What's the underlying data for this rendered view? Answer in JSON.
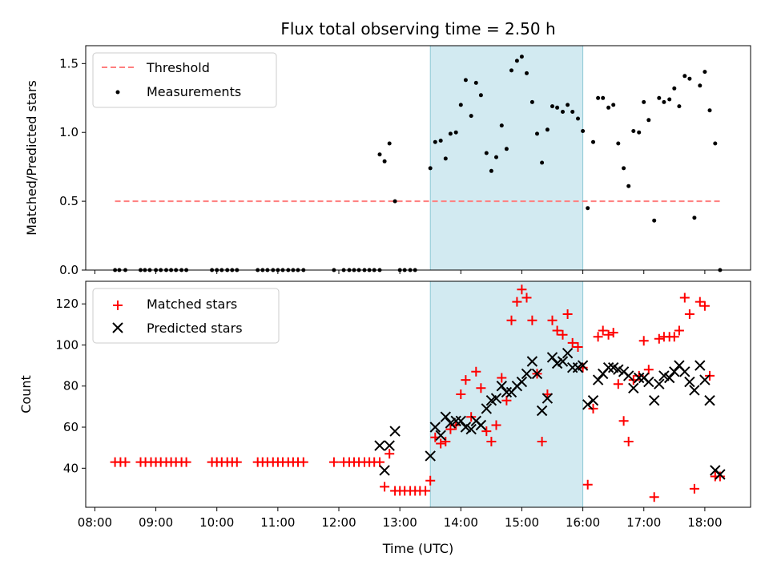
{
  "chart_data": {
    "title": "Flux total observing time = 2.50 h",
    "xlabel": "Time (UTC)",
    "x_ticks": [
      "08:00",
      "09:00",
      "10:00",
      "11:00",
      "12:00",
      "13:00",
      "14:00",
      "15:00",
      "16:00",
      "17:00",
      "18:00"
    ],
    "x_range_hours": [
      7.85,
      18.75
    ],
    "highlight_span_hours": [
      13.5,
      16.0
    ],
    "highlight_color": "#add8e6",
    "top": {
      "type": "scatter",
      "ylabel": "Matched/Predicted stars",
      "ylim": [
        0,
        1.63
      ],
      "y_ticks": [
        0.0,
        0.5,
        1.0,
        1.5
      ],
      "threshold": {
        "value": 0.5,
        "x_start": 8.33,
        "x_end": 18.25,
        "label": "Threshold",
        "color": "#ff7f7f"
      },
      "series_label": "Measurements",
      "points": [
        [
          8.33,
          0
        ],
        [
          8.4,
          0
        ],
        [
          8.5,
          0
        ],
        [
          8.75,
          0
        ],
        [
          8.82,
          0
        ],
        [
          8.9,
          0
        ],
        [
          9.0,
          0
        ],
        [
          9.08,
          0
        ],
        [
          9.17,
          0
        ],
        [
          9.25,
          0
        ],
        [
          9.33,
          0
        ],
        [
          9.42,
          0
        ],
        [
          9.5,
          0
        ],
        [
          9.92,
          0
        ],
        [
          10.0,
          0
        ],
        [
          10.08,
          0
        ],
        [
          10.17,
          0
        ],
        [
          10.25,
          0
        ],
        [
          10.33,
          0
        ],
        [
          10.67,
          0
        ],
        [
          10.75,
          0
        ],
        [
          10.83,
          0
        ],
        [
          10.92,
          0
        ],
        [
          11.0,
          0
        ],
        [
          11.08,
          0
        ],
        [
          11.17,
          0
        ],
        [
          11.25,
          0
        ],
        [
          11.33,
          0
        ],
        [
          11.42,
          0
        ],
        [
          11.92,
          0
        ],
        [
          12.08,
          0
        ],
        [
          12.17,
          0
        ],
        [
          12.25,
          0
        ],
        [
          12.33,
          0
        ],
        [
          12.42,
          0
        ],
        [
          12.5,
          0
        ],
        [
          12.58,
          0
        ],
        [
          12.67,
          0
        ],
        [
          13.0,
          0
        ],
        [
          13.08,
          0
        ],
        [
          13.17,
          0
        ],
        [
          13.25,
          0
        ],
        [
          12.67,
          0.84
        ],
        [
          12.75,
          0.79
        ],
        [
          12.83,
          0.92
        ],
        [
          12.92,
          0.5
        ],
        [
          13.5,
          0.74
        ],
        [
          13.58,
          0.93
        ],
        [
          13.67,
          0.94
        ],
        [
          13.75,
          0.81
        ],
        [
          13.83,
          0.99
        ],
        [
          13.92,
          1.0
        ],
        [
          14.0,
          1.2
        ],
        [
          14.08,
          1.38
        ],
        [
          14.17,
          1.12
        ],
        [
          14.25,
          1.36
        ],
        [
          14.33,
          1.27
        ],
        [
          14.42,
          0.85
        ],
        [
          14.5,
          0.72
        ],
        [
          14.58,
          0.82
        ],
        [
          14.67,
          1.05
        ],
        [
          14.75,
          0.88
        ],
        [
          14.83,
          1.45
        ],
        [
          14.92,
          1.52
        ],
        [
          15.0,
          1.55
        ],
        [
          15.08,
          1.43
        ],
        [
          15.17,
          1.22
        ],
        [
          15.25,
          0.99
        ],
        [
          15.33,
          0.78
        ],
        [
          15.42,
          1.02
        ],
        [
          15.5,
          1.19
        ],
        [
          15.58,
          1.18
        ],
        [
          15.67,
          1.15
        ],
        [
          15.75,
          1.2
        ],
        [
          15.83,
          1.15
        ],
        [
          15.92,
          1.1
        ],
        [
          16.0,
          1.01
        ],
        [
          16.08,
          0.45
        ],
        [
          16.17,
          0.93
        ],
        [
          16.25,
          1.25
        ],
        [
          16.33,
          1.25
        ],
        [
          16.42,
          1.18
        ],
        [
          16.5,
          1.2
        ],
        [
          16.58,
          0.92
        ],
        [
          16.67,
          0.74
        ],
        [
          16.75,
          0.61
        ],
        [
          16.83,
          1.01
        ],
        [
          16.92,
          1.0
        ],
        [
          17.0,
          1.22
        ],
        [
          17.08,
          1.09
        ],
        [
          17.17,
          0.36
        ],
        [
          17.25,
          1.25
        ],
        [
          17.33,
          1.22
        ],
        [
          17.42,
          1.24
        ],
        [
          17.5,
          1.32
        ],
        [
          17.58,
          1.19
        ],
        [
          17.67,
          1.41
        ],
        [
          17.75,
          1.39
        ],
        [
          17.83,
          0.38
        ],
        [
          17.92,
          1.34
        ],
        [
          18.0,
          1.44
        ],
        [
          18.08,
          1.16
        ],
        [
          18.17,
          0.92
        ],
        [
          18.25,
          0.0
        ]
      ]
    },
    "bottom": {
      "type": "scatter",
      "ylabel": "Count",
      "ylim": [
        21,
        131
      ],
      "y_ticks": [
        40,
        60,
        80,
        100,
        120
      ],
      "series": [
        {
          "name": "Matched stars",
          "marker": "plus",
          "color": "#ff0000",
          "points": [
            [
              8.33,
              43
            ],
            [
              8.42,
              43
            ],
            [
              8.5,
              43
            ],
            [
              8.75,
              43
            ],
            [
              8.83,
              43
            ],
            [
              8.92,
              43
            ],
            [
              9.0,
              43
            ],
            [
              9.08,
              43
            ],
            [
              9.17,
              43
            ],
            [
              9.25,
              43
            ],
            [
              9.33,
              43
            ],
            [
              9.42,
              43
            ],
            [
              9.5,
              43
            ],
            [
              9.92,
              43
            ],
            [
              10.0,
              43
            ],
            [
              10.08,
              43
            ],
            [
              10.17,
              43
            ],
            [
              10.25,
              43
            ],
            [
              10.33,
              43
            ],
            [
              10.67,
              43
            ],
            [
              10.75,
              43
            ],
            [
              10.83,
              43
            ],
            [
              10.92,
              43
            ],
            [
              11.0,
              43
            ],
            [
              11.08,
              43
            ],
            [
              11.17,
              43
            ],
            [
              11.25,
              43
            ],
            [
              11.33,
              43
            ],
            [
              11.42,
              43
            ],
            [
              11.92,
              43
            ],
            [
              12.08,
              43
            ],
            [
              12.17,
              43
            ],
            [
              12.25,
              43
            ],
            [
              12.33,
              43
            ],
            [
              12.42,
              43
            ],
            [
              12.5,
              43
            ],
            [
              12.58,
              43
            ],
            [
              12.67,
              43
            ],
            [
              12.75,
              31
            ],
            [
              12.83,
              47
            ],
            [
              12.92,
              29
            ],
            [
              13.0,
              29
            ],
            [
              13.08,
              29
            ],
            [
              13.17,
              29
            ],
            [
              13.25,
              29
            ],
            [
              13.33,
              29
            ],
            [
              13.42,
              29
            ],
            [
              13.5,
              34
            ],
            [
              13.58,
              55
            ],
            [
              13.67,
              52
            ],
            [
              13.75,
              53
            ],
            [
              13.83,
              59
            ],
            [
              13.92,
              61
            ],
            [
              14.0,
              76
            ],
            [
              14.08,
              83
            ],
            [
              14.17,
              65
            ],
            [
              14.25,
              87
            ],
            [
              14.33,
              79
            ],
            [
              14.42,
              58
            ],
            [
              14.5,
              53
            ],
            [
              14.58,
              61
            ],
            [
              14.67,
              84
            ],
            [
              14.75,
              73
            ],
            [
              14.83,
              112
            ],
            [
              14.92,
              121
            ],
            [
              15.0,
              127
            ],
            [
              15.08,
              123
            ],
            [
              15.17,
              112
            ],
            [
              15.25,
              86
            ],
            [
              15.33,
              53
            ],
            [
              15.42,
              76
            ],
            [
              15.5,
              112
            ],
            [
              15.58,
              107
            ],
            [
              15.67,
              105
            ],
            [
              15.75,
              115
            ],
            [
              15.83,
              101
            ],
            [
              15.92,
              99
            ],
            [
              16.0,
              89
            ],
            [
              16.08,
              32
            ],
            [
              16.17,
              69
            ],
            [
              16.25,
              104
            ],
            [
              16.33,
              107
            ],
            [
              16.42,
              105
            ],
            [
              16.5,
              106
            ],
            [
              16.58,
              81
            ],
            [
              16.67,
              63
            ],
            [
              16.75,
              53
            ],
            [
              16.83,
              83
            ],
            [
              16.92,
              85
            ],
            [
              17.0,
              102
            ],
            [
              17.08,
              88
            ],
            [
              17.17,
              26
            ],
            [
              17.25,
              103
            ],
            [
              17.33,
              104
            ],
            [
              17.42,
              104
            ],
            [
              17.5,
              104
            ],
            [
              17.58,
              107
            ],
            [
              17.67,
              123
            ],
            [
              17.75,
              115
            ],
            [
              17.83,
              30
            ],
            [
              17.92,
              121
            ],
            [
              18.0,
              119
            ],
            [
              18.08,
              85
            ],
            [
              18.17,
              36
            ],
            [
              18.25,
              36
            ]
          ]
        },
        {
          "name": "Predicted stars",
          "marker": "x",
          "color": "#000000",
          "points": [
            [
              12.67,
              51
            ],
            [
              12.75,
              39
            ],
            [
              12.83,
              51
            ],
            [
              12.92,
              58
            ],
            [
              13.5,
              46
            ],
            [
              13.58,
              60
            ],
            [
              13.67,
              56
            ],
            [
              13.75,
              65
            ],
            [
              13.83,
              62
            ],
            [
              13.92,
              63
            ],
            [
              14.0,
              63
            ],
            [
              14.08,
              60
            ],
            [
              14.17,
              59
            ],
            [
              14.25,
              63
            ],
            [
              14.33,
              61
            ],
            [
              14.42,
              69
            ],
            [
              14.5,
              73
            ],
            [
              14.58,
              74
            ],
            [
              14.67,
              80
            ],
            [
              14.75,
              77
            ],
            [
              14.83,
              77
            ],
            [
              14.92,
              80
            ],
            [
              15.0,
              82
            ],
            [
              15.08,
              86
            ],
            [
              15.17,
              92
            ],
            [
              15.25,
              86
            ],
            [
              15.33,
              68
            ],
            [
              15.42,
              74
            ],
            [
              15.5,
              94
            ],
            [
              15.58,
              91
            ],
            [
              15.67,
              92
            ],
            [
              15.75,
              96
            ],
            [
              15.83,
              89
            ],
            [
              15.92,
              89
            ],
            [
              16.0,
              90
            ],
            [
              16.08,
              71
            ],
            [
              16.17,
              73
            ],
            [
              16.25,
              83
            ],
            [
              16.33,
              86
            ],
            [
              16.42,
              89
            ],
            [
              16.5,
              89
            ],
            [
              16.58,
              88
            ],
            [
              16.67,
              87
            ],
            [
              16.75,
              85
            ],
            [
              16.83,
              79
            ],
            [
              16.92,
              84
            ],
            [
              17.0,
              84
            ],
            [
              17.08,
              82
            ],
            [
              17.17,
              73
            ],
            [
              17.25,
              81
            ],
            [
              17.33,
              85
            ],
            [
              17.42,
              84
            ],
            [
              17.5,
              87
            ],
            [
              17.58,
              90
            ],
            [
              17.67,
              87
            ],
            [
              17.75,
              82
            ],
            [
              17.83,
              78
            ],
            [
              17.92,
              90
            ],
            [
              18.0,
              83
            ],
            [
              18.08,
              73
            ],
            [
              18.17,
              39
            ],
            [
              18.25,
              37
            ]
          ]
        }
      ]
    }
  }
}
